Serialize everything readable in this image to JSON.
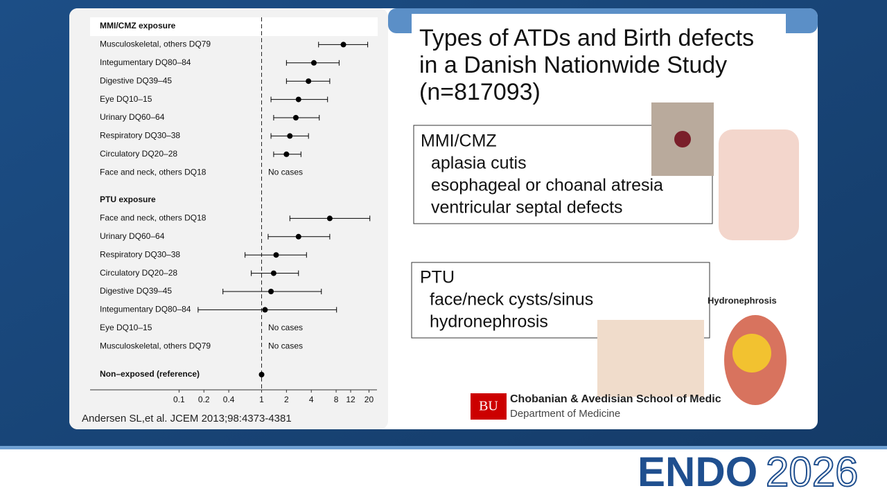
{
  "chart_data": {
    "type": "forest",
    "groups": [
      {
        "name": "MMI/CMZ exposure",
        "rows": [
          {
            "label": "Musculoskeletal, others DQ79",
            "value": 9.8,
            "ci": [
              4.9,
              19.3
            ]
          },
          {
            "label": "Integumentary DQ80–84",
            "value": 4.3,
            "ci": [
              2.0,
              8.7
            ]
          },
          {
            "label": "Digestive DQ39–45",
            "value": 3.7,
            "ci": [
              2.0,
              6.7
            ]
          },
          {
            "label": "Eye DQ10–15",
            "value": 2.8,
            "ci": [
              1.3,
              6.3
            ]
          },
          {
            "label": "Urinary DQ60–64",
            "value": 2.6,
            "ci": [
              1.4,
              5.0
            ]
          },
          {
            "label": "Respiratory DQ30–38",
            "value": 2.2,
            "ci": [
              1.3,
              3.7
            ]
          },
          {
            "label": "Circulatory DQ20–28",
            "value": 2.0,
            "ci": [
              1.4,
              3.0
            ]
          },
          {
            "label": "Face and neck, others DQ18",
            "value": null,
            "note": "No cases"
          }
        ]
      },
      {
        "name": "PTU exposure",
        "rows": [
          {
            "label": "Face and neck, others DQ18",
            "value": 6.7,
            "ci": [
              2.2,
              20.5
            ]
          },
          {
            "label": "Urinary DQ60–64",
            "value": 2.8,
            "ci": [
              1.2,
              6.7
            ]
          },
          {
            "label": "Respiratory DQ30–38",
            "value": 1.5,
            "ci": [
              0.63,
              3.5
            ]
          },
          {
            "label": "Circulatory DQ20–28",
            "value": 1.4,
            "ci": [
              0.75,
              2.8
            ]
          },
          {
            "label": "Digestive DQ39–45",
            "value": 1.3,
            "ci": [
              0.34,
              5.3
            ]
          },
          {
            "label": "Integumentary DQ80–84",
            "value": 1.1,
            "ci": [
              0.17,
              8.1
            ]
          },
          {
            "label": "Eye DQ10–15",
            "value": null,
            "note": "No cases"
          },
          {
            "label": "Musculoskeletal, others DQ79",
            "value": null,
            "note": "No cases"
          }
        ]
      }
    ],
    "reference": {
      "label": "Non–exposed (reference)",
      "value": 1
    },
    "log_scale": true,
    "xlim": [
      0.085,
      25
    ],
    "xticks": [
      0.1,
      0.2,
      0.4,
      1,
      2,
      4,
      8,
      12,
      20
    ],
    "color": "#000000"
  },
  "citation": "Andersen SL,et al. JCEM 2013;98:4373-4381",
  "title": [
    "Types of ATDs and Birth defects",
    "in a Danish Nationwide Study",
    "(n=817093)"
  ],
  "mmi_box": {
    "heading": "MMI/CMZ",
    "items": [
      "aplasia cutis",
      "esophageal or choanal atresia",
      "ventricular septal defects"
    ]
  },
  "ptu_box": {
    "heading": "PTU",
    "items": [
      "face/neck cysts/sinus",
      "hydronephrosis"
    ]
  },
  "hydronephrosis_label": "Hydronephrosis",
  "school": {
    "logo": "BU",
    "name": "Chobanian & Avedisian School of Medic",
    "department": "Department of Medicine"
  },
  "footer": {
    "brand": "ENDO",
    "year": "2026"
  }
}
